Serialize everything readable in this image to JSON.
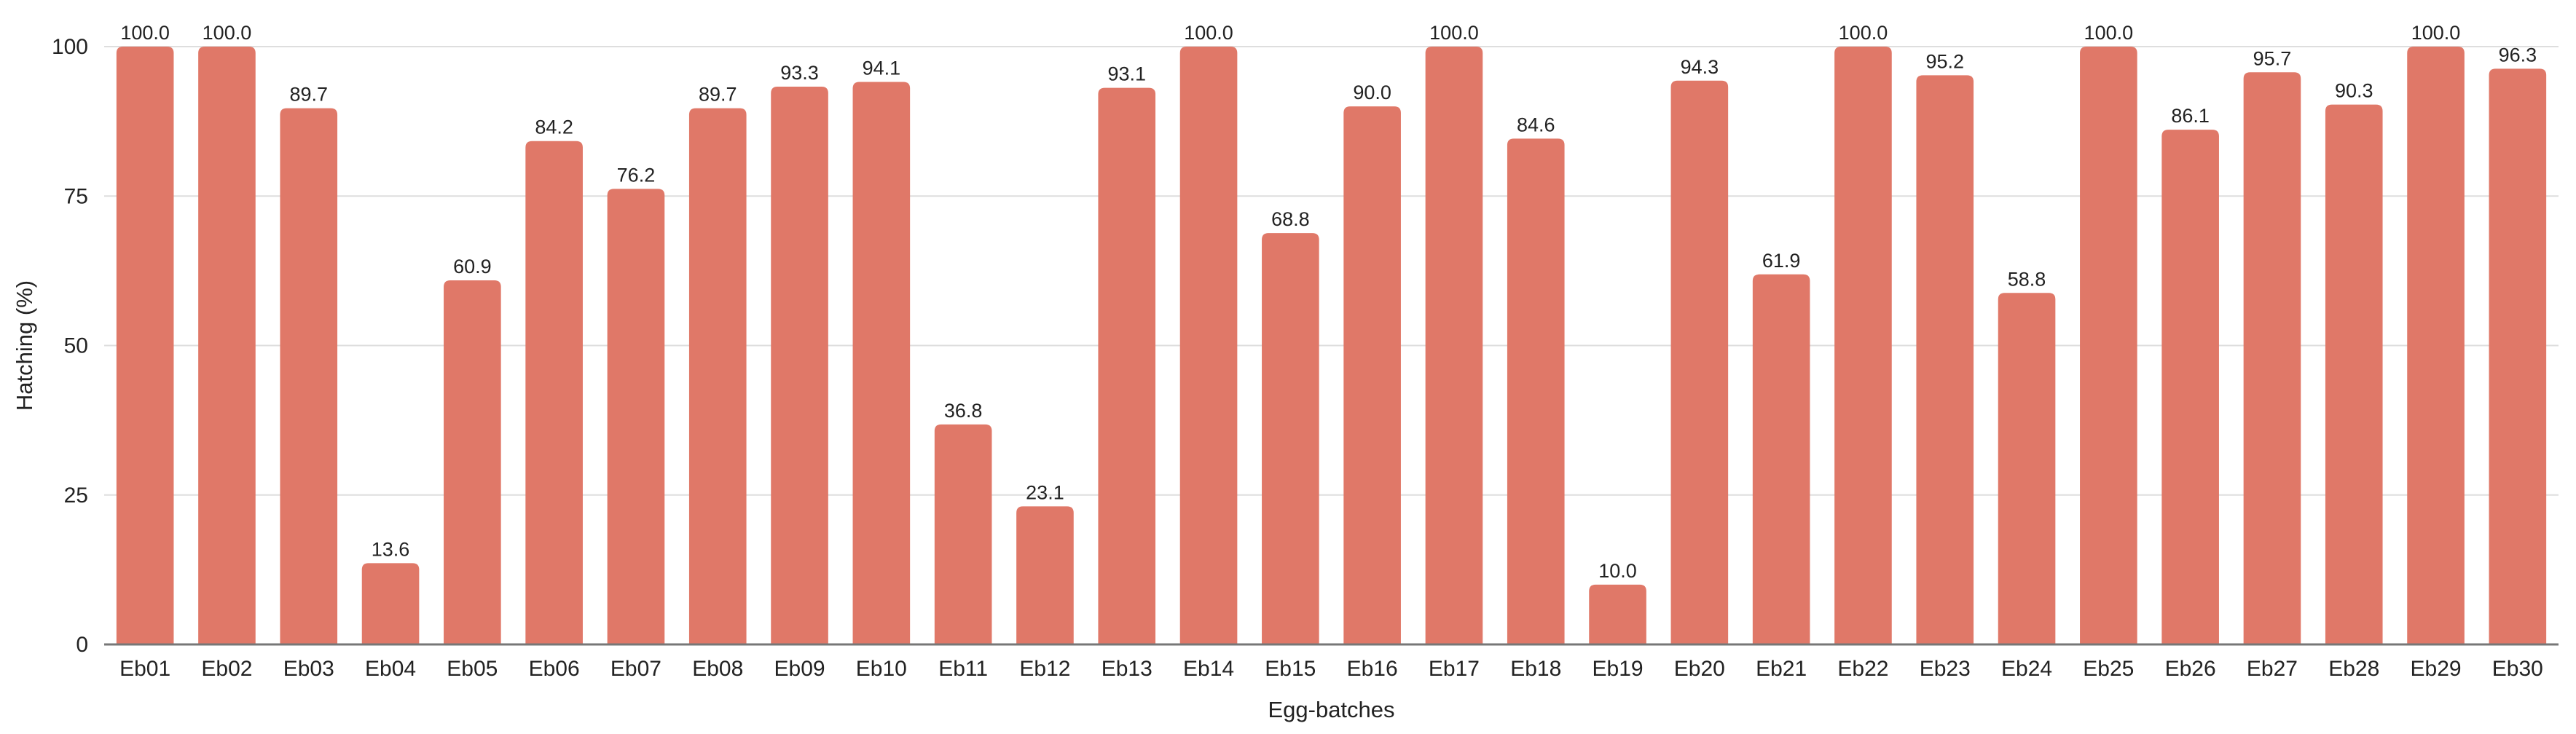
{
  "chart_data": {
    "type": "bar",
    "xlabel": "Egg-batches",
    "ylabel": "Hatching (%)",
    "ylim": [
      0,
      100
    ],
    "yticks": [
      0,
      25,
      50,
      75,
      100
    ],
    "grid": true,
    "bar_color": "#e07868",
    "categories": [
      "Eb01",
      "Eb02",
      "Eb03",
      "Eb04",
      "Eb05",
      "Eb06",
      "Eb07",
      "Eb08",
      "Eb09",
      "Eb10",
      "Eb11",
      "Eb12",
      "Eb13",
      "Eb14",
      "Eb15",
      "Eb16",
      "Eb17",
      "Eb18",
      "Eb19",
      "Eb20",
      "Eb21",
      "Eb22",
      "Eb23",
      "Eb24",
      "Eb25",
      "Eb26",
      "Eb27",
      "Eb28",
      "Eb29",
      "Eb30"
    ],
    "values": [
      100.0,
      100.0,
      89.7,
      13.6,
      60.9,
      84.2,
      76.2,
      89.7,
      93.3,
      94.1,
      36.8,
      23.1,
      93.1,
      100.0,
      68.8,
      90.0,
      100.0,
      84.6,
      10.0,
      94.3,
      61.9,
      100.0,
      95.2,
      58.8,
      100.0,
      86.1,
      95.7,
      90.3,
      100.0,
      96.3
    ],
    "value_labels": [
      "100.0",
      "100.0",
      "89.7",
      "13.6",
      "60.9",
      "84.2",
      "76.2",
      "89.7",
      "93.3",
      "94.1",
      "36.8",
      "23.1",
      "93.1",
      "100.0",
      "68.8",
      "90.0",
      "100.0",
      "84.6",
      "10.0",
      "94.3",
      "61.9",
      "100.0",
      "95.2",
      "58.8",
      "100.0",
      "86.1",
      "95.7",
      "90.3",
      "100.0",
      "96.3"
    ]
  }
}
